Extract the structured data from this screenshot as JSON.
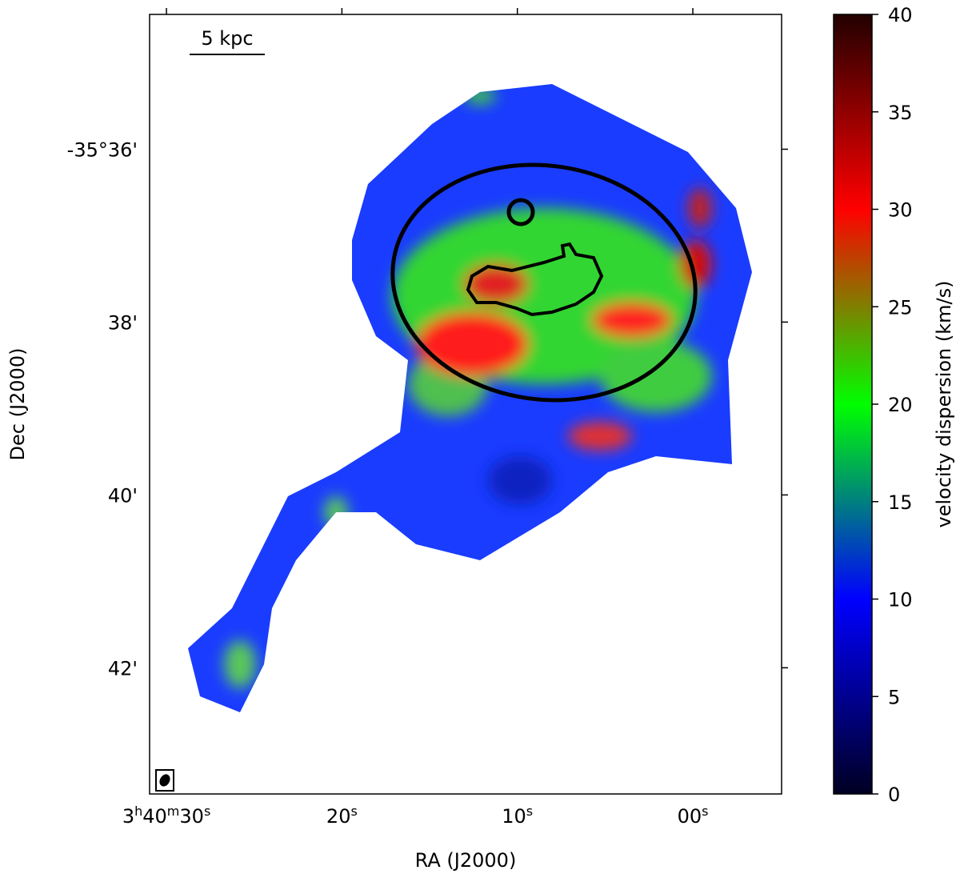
{
  "chart_data": {
    "type": "image",
    "xlabel": "RA (J2000)",
    "ylabel": "Dec (J2000)",
    "xlim": [
      30.96,
      -5.06
    ],
    "xticks": [
      {
        "value": 30,
        "label": "3h40m30s"
      },
      {
        "value": 20,
        "label": "20s"
      },
      {
        "value": 10,
        "label": "10s"
      },
      {
        "value": 0,
        "label": "00s"
      }
    ],
    "ylim": [
      34.44,
      43.46
    ],
    "yticks": [
      {
        "value": 36,
        "label": "-35°36'"
      },
      {
        "value": 38,
        "label": "38'"
      },
      {
        "value": 40,
        "label": "40'"
      },
      {
        "value": 42,
        "label": "42'"
      }
    ],
    "scale_bar": "5 kpc",
    "colorbar": {
      "label": "velocity dispersion (km/s)",
      "clim": [
        0,
        40
      ],
      "ticks": [
        0,
        5,
        10,
        15,
        20,
        25,
        30,
        35,
        40
      ],
      "colormap": [
        "#000022",
        "#0000ff",
        "#00ff00",
        "#ff0000",
        "#220000"
      ]
    }
  }
}
